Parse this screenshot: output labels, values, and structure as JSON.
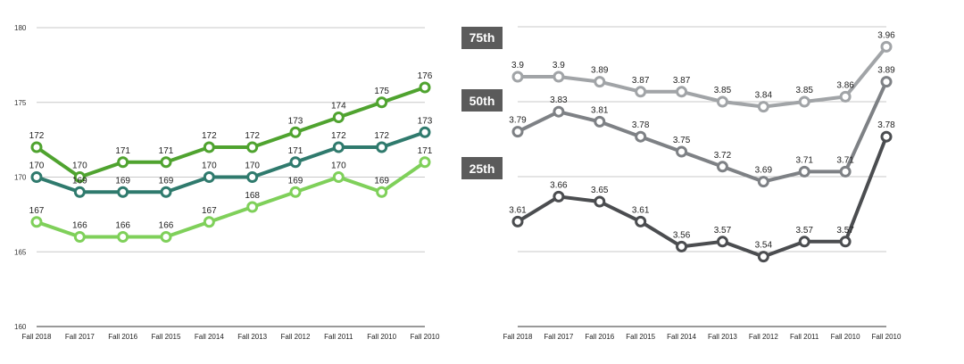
{
  "chart_data": [
    {
      "type": "line",
      "categories": [
        "Fall 2018",
        "Fall 2017",
        "Fall 2016",
        "Fall 2015",
        "Fall 2014",
        "Fall 2013",
        "Fall 2012",
        "Fall 2011",
        "Fall 2010",
        "Fall 2010"
      ],
      "ylim": [
        160,
        180
      ],
      "yticks": [
        160,
        165,
        170,
        175,
        180
      ],
      "grid": true,
      "series": [
        {
          "color": "#4fa32f",
          "values": [
            172,
            170,
            171,
            171,
            172,
            172,
            173,
            174,
            175,
            176
          ]
        },
        {
          "color": "#2f7a6d",
          "values": [
            170,
            169,
            169,
            169,
            170,
            170,
            171,
            172,
            172,
            173
          ]
        },
        {
          "color": "#7fd05a",
          "values": [
            167,
            166,
            166,
            166,
            167,
            168,
            169,
            170,
            169,
            171
          ]
        }
      ]
    },
    {
      "type": "line",
      "categories": [
        "Fall 2018",
        "Fall 2017",
        "Fall 2016",
        "Fall 2015",
        "Fall 2014",
        "Fall 2013",
        "Fall 2012",
        "Fall 2011",
        "Fall 2010",
        "Fall 2010"
      ],
      "ylim": [
        3.4,
        4.0
      ],
      "gridlines": [
        4.0,
        3.85,
        3.7,
        3.55
      ],
      "grid": true,
      "legend_badges": [
        "75th",
        "50th",
        "25th"
      ],
      "badge_color": "#5b5b5b",
      "series": [
        {
          "name": "75th",
          "color": "#a1a4a7",
          "values": [
            3.9,
            3.9,
            3.89,
            3.87,
            3.87,
            3.85,
            3.84,
            3.85,
            3.86,
            3.96
          ]
        },
        {
          "name": "50th",
          "color": "#7e8185",
          "values": [
            3.79,
            3.83,
            3.81,
            3.78,
            3.75,
            3.72,
            3.69,
            3.71,
            3.71,
            3.89
          ]
        },
        {
          "name": "25th",
          "color": "#4b4d50",
          "values": [
            3.61,
            3.66,
            3.65,
            3.61,
            3.56,
            3.57,
            3.54,
            3.57,
            3.57,
            3.78
          ]
        }
      ]
    }
  ]
}
